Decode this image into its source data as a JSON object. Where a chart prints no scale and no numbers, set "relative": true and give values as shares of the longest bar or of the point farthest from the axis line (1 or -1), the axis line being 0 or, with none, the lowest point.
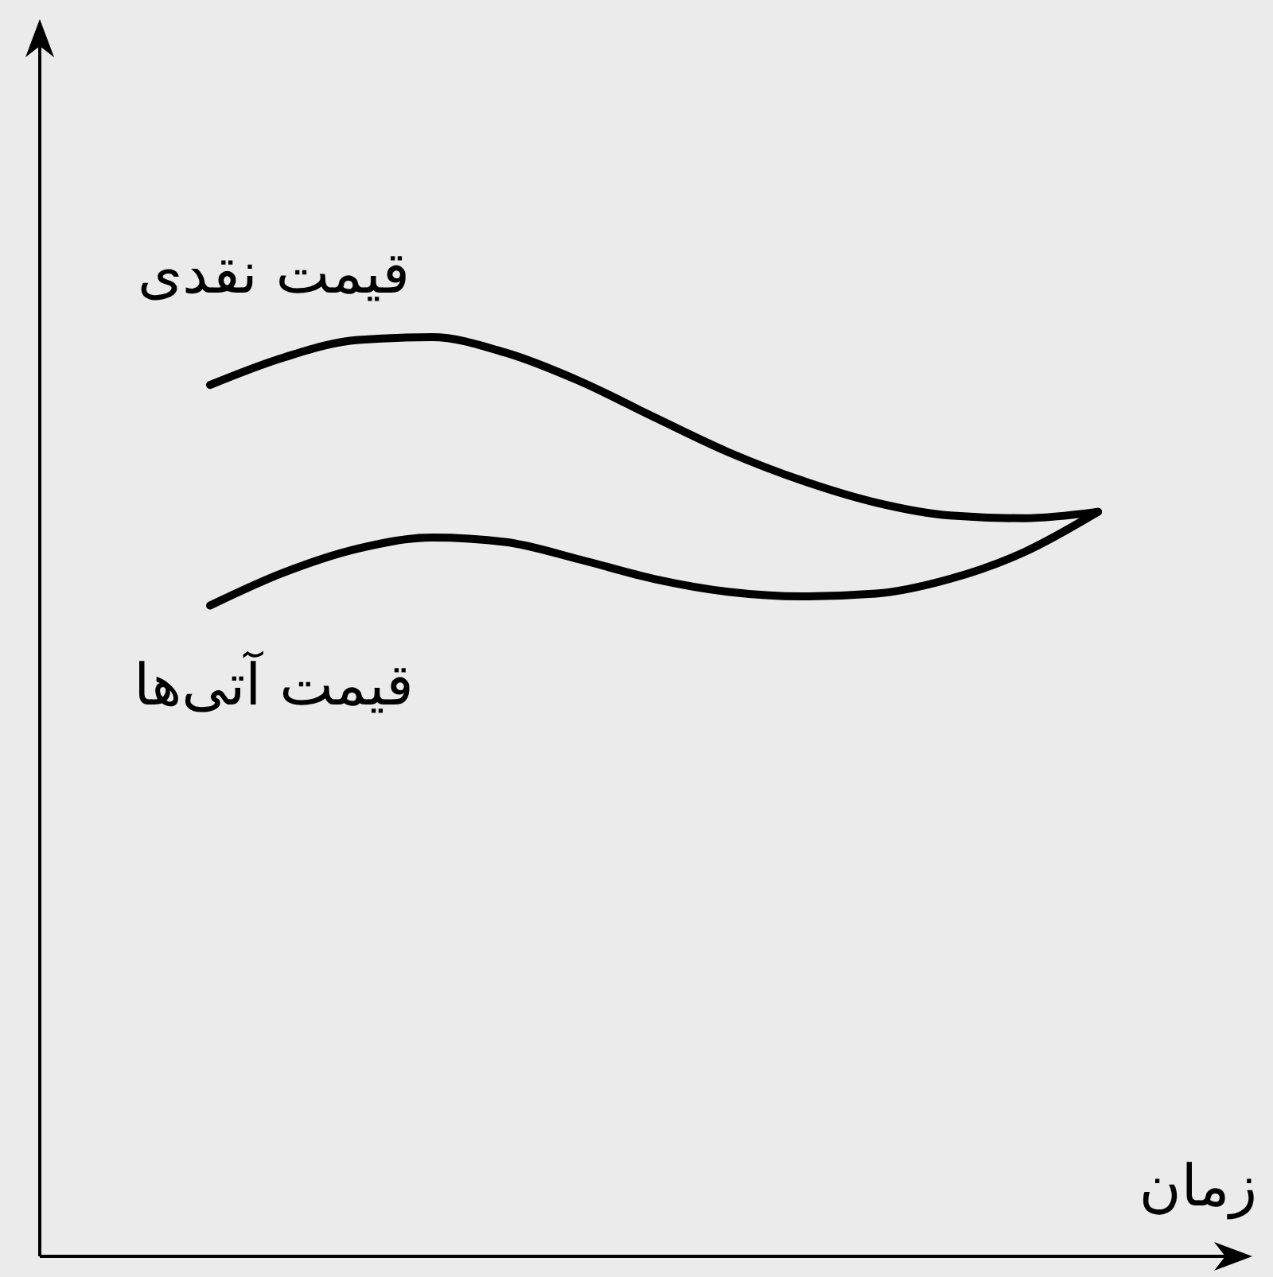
{
  "chart_data": {
    "type": "line",
    "relative": true,
    "xlabel": "زمان",
    "categories": [
      null,
      null,
      null,
      null,
      null,
      null,
      null,
      null,
      null,
      null,
      null,
      null,
      null
    ],
    "marker": "none",
    "line_style": "solid",
    "series": [
      {
        "name": "قیمت نقدی",
        "color": "#000000",
        "values": [
          0.948,
          0.978,
          0.997,
          1.0,
          0.983,
          0.952,
          0.913,
          0.875,
          0.844,
          0.82,
          0.806,
          0.803,
          0.81
        ]
      },
      {
        "name": "قیمت آتی‌ها",
        "color": "#000000",
        "values": [
          0.708,
          0.744,
          0.77,
          0.782,
          0.777,
          0.758,
          0.737,
          0.723,
          0.718,
          0.721,
          0.737,
          0.766,
          0.81
        ]
      }
    ]
  }
}
